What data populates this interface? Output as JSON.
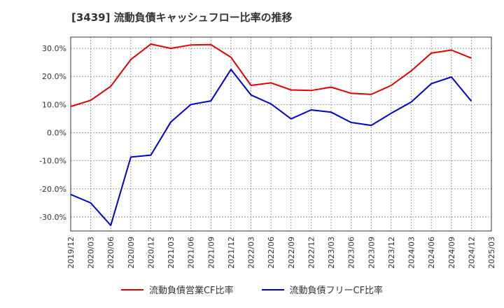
{
  "chart_data": {
    "type": "line",
    "title": "[3439]  流動負債キャッシュフロー比率の推移",
    "categories": [
      "2019/12",
      "2020/03",
      "2020/06",
      "2020/09",
      "2020/12",
      "2021/03",
      "2021/06",
      "2021/09",
      "2021/12",
      "2022/03",
      "2022/06",
      "2022/09",
      "2022/12",
      "2023/03",
      "2023/06",
      "2023/09",
      "2023/12",
      "2024/03",
      "2024/06",
      "2024/09",
      "2024/12",
      "2025/03"
    ],
    "ylim": [
      -35,
      34
    ],
    "yticks": [
      30,
      20,
      10,
      0,
      -10,
      -20,
      -30
    ],
    "ytick_labels": [
      "30.0%",
      "20.0%",
      "10.0%",
      "0.0%",
      "-10.0%",
      "-20.0%",
      "-30.0%"
    ],
    "grid": true,
    "series": [
      {
        "name": "流動負債営業CF比率",
        "color": "#e00000",
        "values": [
          9.3,
          11.5,
          16.5,
          26.0,
          31.5,
          30.0,
          31.2,
          31.3,
          26.8,
          16.8,
          17.7,
          15.2,
          15.0,
          16.2,
          14.0,
          13.6,
          16.8,
          22.0,
          28.3,
          29.4,
          26.5,
          null
        ]
      },
      {
        "name": "流動負債フリーCF比率",
        "color": "#0000cc",
        "values": [
          -22.0,
          -25.0,
          -33.0,
          -8.7,
          -8.0,
          3.8,
          10.0,
          11.3,
          22.5,
          13.4,
          10.2,
          4.9,
          8.1,
          7.3,
          3.6,
          2.6,
          6.9,
          10.9,
          17.4,
          19.8,
          11.2,
          null
        ]
      }
    ],
    "legend": [
      "流動負債営業CF比率",
      "流動負債フリーCF比率"
    ],
    "legend_position": "bottom"
  }
}
